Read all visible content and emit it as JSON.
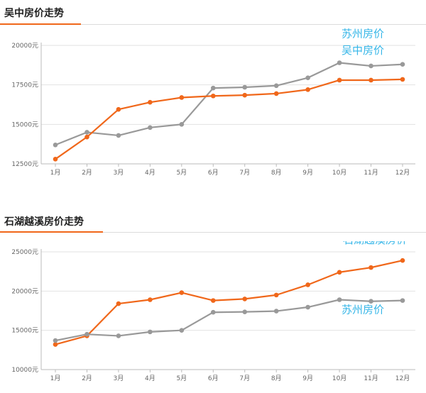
{
  "colors": {
    "orange": "#f0671a",
    "gray": "#999999",
    "label": "#35b6e8",
    "accent": "#f0671a"
  },
  "chart_data": [
    {
      "type": "line",
      "title": "吴中房价走势",
      "categories": [
        "1月",
        "2月",
        "3月",
        "4月",
        "5月",
        "6月",
        "7月",
        "8月",
        "9月",
        "10月",
        "11月",
        "12月"
      ],
      "yticks": [
        "12500元",
        "15000元",
        "17500元",
        "20000元"
      ],
      "ytick_values": [
        12500,
        15000,
        17500,
        20000
      ],
      "ylim": [
        12500,
        20000
      ],
      "series": [
        {
          "name": "苏州房价",
          "color": "gray",
          "label_anchor": "start",
          "values": [
            13700,
            14500,
            14300,
            14800,
            15000,
            17300,
            17350,
            17450,
            17950,
            18900,
            18700,
            18800
          ]
        },
        {
          "name": "吴中房价",
          "color": "orange",
          "label_anchor": "start",
          "values": [
            12800,
            14200,
            15950,
            16400,
            16700,
            16800,
            16850,
            16950,
            17200,
            17800,
            17800,
            17850
          ]
        }
      ]
    },
    {
      "type": "line",
      "title": "石湖越溪房价走势",
      "categories": [
        "1月",
        "2月",
        "3月",
        "4月",
        "5月",
        "6月",
        "7月",
        "8月",
        "9月",
        "10月",
        "11月",
        "12月"
      ],
      "yticks": [
        "10000元",
        "15000元",
        "20000元",
        "25000元"
      ],
      "ytick_values": [
        10000,
        15000,
        20000,
        25000
      ],
      "ylim": [
        10000,
        25000
      ],
      "series": [
        {
          "name": "石湖越溪房价",
          "color": "orange",
          "label_anchor": "end",
          "values": [
            13200,
            14300,
            18400,
            18900,
            19800,
            18800,
            19000,
            19500,
            20800,
            22400,
            23000,
            23900
          ]
        },
        {
          "name": "苏州房价",
          "color": "gray",
          "label_anchor": "start",
          "values": [
            13700,
            14500,
            14300,
            14800,
            15000,
            17300,
            17350,
            17450,
            17950,
            18900,
            18700,
            18800
          ]
        }
      ]
    }
  ]
}
